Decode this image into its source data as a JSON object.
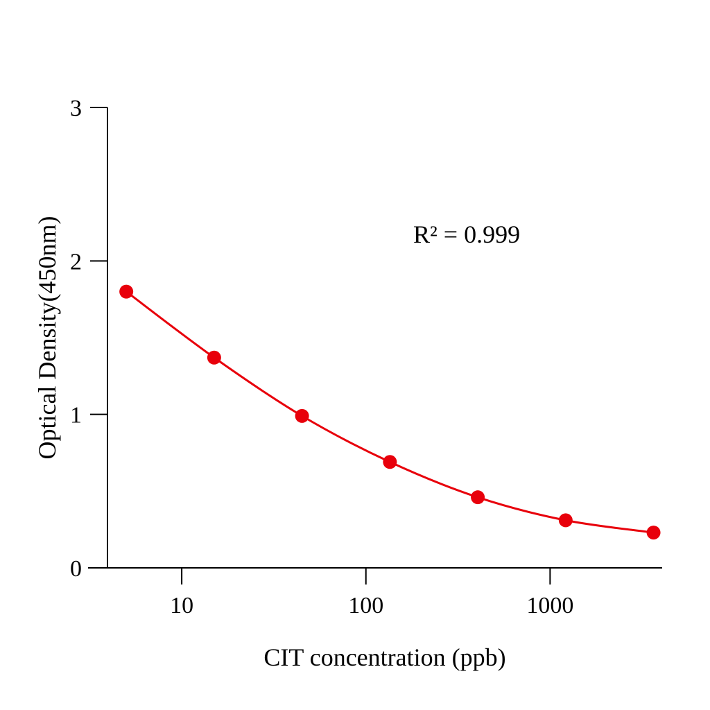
{
  "chart_data": {
    "type": "line",
    "title": "",
    "xlabel": "CIT concentration (ppb)",
    "ylabel": "Optical Density(450nm)",
    "x_scale": "log",
    "xlim": [
      3.1,
      4060
    ],
    "ylim": [
      0,
      3
    ],
    "x_ticks": [
      10,
      100,
      1000
    ],
    "x_tick_labels": [
      "10",
      "100",
      "1000"
    ],
    "y_ticks": [
      0,
      1,
      2,
      3
    ],
    "y_tick_labels": [
      "0",
      "1",
      "2",
      "3"
    ],
    "grid": false,
    "annotation": "R² = 0.999",
    "series_color": "#e8000b",
    "series": [
      {
        "x": [
          5,
          15,
          45,
          135,
          405,
          1215,
          3645
        ],
        "y": [
          1.8,
          1.37,
          0.99,
          0.69,
          0.46,
          0.31,
          0.23
        ]
      }
    ]
  }
}
